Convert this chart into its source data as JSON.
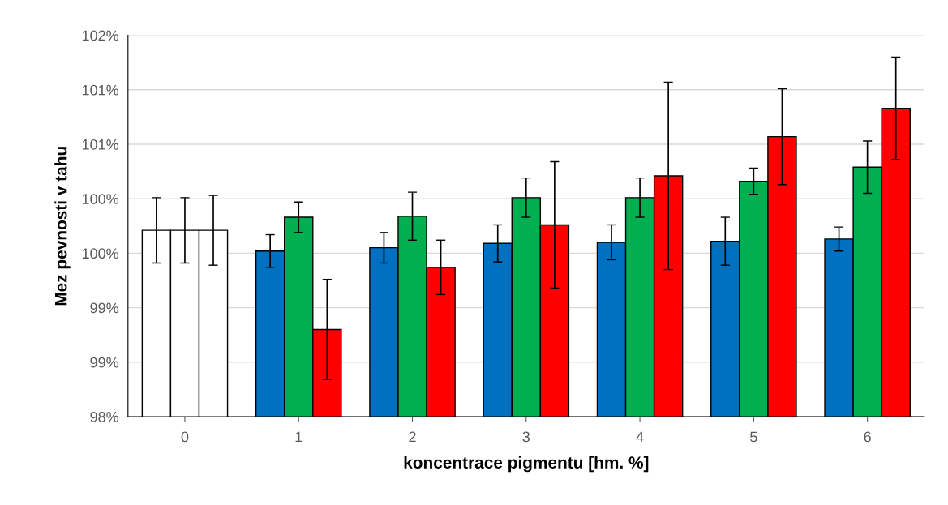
{
  "chart_data": {
    "type": "bar",
    "xlabel": "koncentrace pigmentu [hm. %]",
    "ylabel": "Mez pevnosti v tahu",
    "categories": [
      "0",
      "1",
      "2",
      "3",
      "4",
      "5",
      "6"
    ],
    "series": [
      {
        "colors": [
          "#ffffff",
          "#0070c0",
          "#0070c0",
          "#0070c0",
          "#0070c0",
          "#0070c0",
          "#0070c0"
        ],
        "values": [
          99.71,
          99.52,
          99.55,
          99.59,
          99.6,
          99.61,
          99.63
        ],
        "errors": [
          0.3,
          0.15,
          0.14,
          0.17,
          0.16,
          0.22,
          0.11
        ]
      },
      {
        "colors": [
          "#ffffff",
          "#00b050",
          "#00b050",
          "#00b050",
          "#00b050",
          "#00b050",
          "#00b050"
        ],
        "values": [
          99.71,
          99.83,
          99.84,
          100.01,
          100.01,
          100.16,
          100.29
        ],
        "errors": [
          0.3,
          0.14,
          0.22,
          0.18,
          0.18,
          0.12,
          0.24
        ]
      },
      {
        "colors": [
          "#ffffff",
          "#ff0000",
          "#ff0000",
          "#ff0000",
          "#ff0000",
          "#ff0000",
          "#ff0000"
        ],
        "values": [
          99.71,
          98.8,
          99.37,
          99.76,
          100.21,
          100.57,
          100.83
        ],
        "errors": [
          0.32,
          0.46,
          0.25,
          0.58,
          0.86,
          0.44,
          0.47
        ]
      }
    ],
    "ylim": [
      98,
      101.5
    ],
    "yticks": [
      {
        "value": 98,
        "label": "98%"
      },
      {
        "value": 98.5,
        "label": "99%"
      },
      {
        "value": 99,
        "label": "99%"
      },
      {
        "value": 99.5,
        "label": "100%"
      },
      {
        "value": 100,
        "label": "100%"
      },
      {
        "value": 100.5,
        "label": "101%"
      },
      {
        "value": 101,
        "label": "101%"
      },
      {
        "value": 101.5,
        "label": "102%"
      }
    ],
    "grid": "y",
    "legend": false
  }
}
